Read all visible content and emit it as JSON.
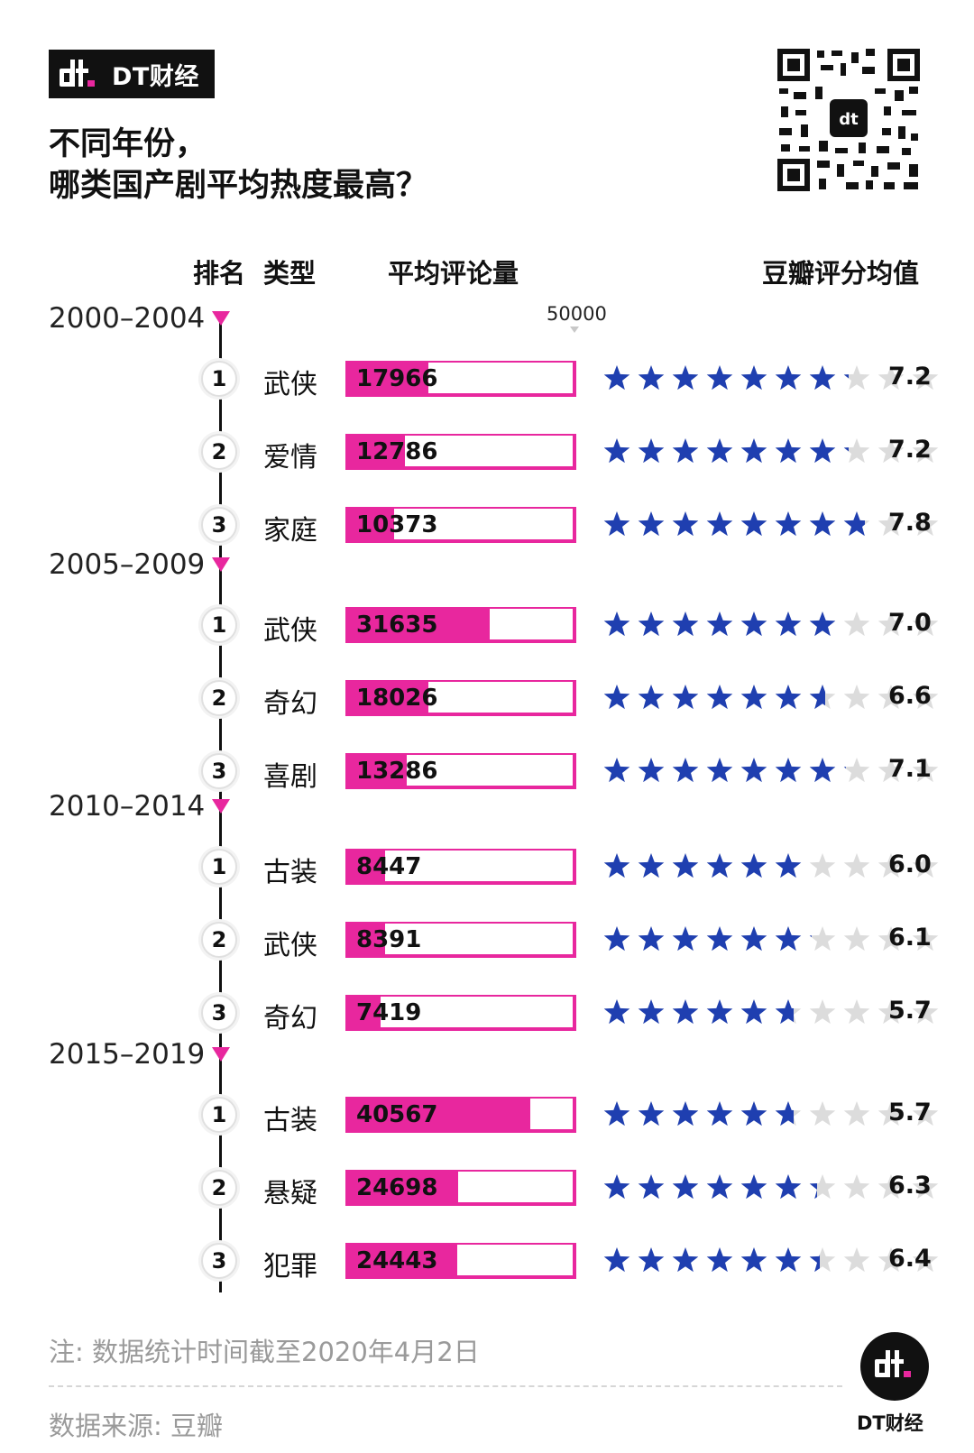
{
  "header": {
    "brand": "DT财经",
    "title_line1": "不同年份，",
    "title_line2": "哪类国产剧平均热度最高？"
  },
  "columns": {
    "rank": "排名",
    "genre": "类型",
    "comments": "平均评论量",
    "rating": "豆瓣评分均值"
  },
  "colors": {
    "accent": "#e8279e",
    "star": "#1f3fb0",
    "star_empty": "#dcdcdc"
  },
  "chart_data": {
    "type": "bar",
    "bar_max": 50000,
    "bar_max_label": "50000",
    "rating_max": 10,
    "star_count": 10,
    "groups": [
      {
        "period": "2000–2004",
        "rows": [
          {
            "rank": "1",
            "genre": "武侠",
            "comments": 17966,
            "comments_label": "17966",
            "rating": 7.2,
            "rating_label": "7.2"
          },
          {
            "rank": "2",
            "genre": "爱情",
            "comments": 12786,
            "comments_label": "12786",
            "rating": 7.2,
            "rating_label": "7.2"
          },
          {
            "rank": "3",
            "genre": "家庭",
            "comments": 10373,
            "comments_label": "10373",
            "rating": 7.8,
            "rating_label": "7.8"
          }
        ]
      },
      {
        "period": "2005–2009",
        "rows": [
          {
            "rank": "1",
            "genre": "武侠",
            "comments": 31635,
            "comments_label": "31635",
            "rating": 7.0,
            "rating_label": "7.0"
          },
          {
            "rank": "2",
            "genre": "奇幻",
            "comments": 18026,
            "comments_label": "18026",
            "rating": 6.6,
            "rating_label": "6.6"
          },
          {
            "rank": "3",
            "genre": "喜剧",
            "comments": 13286,
            "comments_label": "13286",
            "rating": 7.1,
            "rating_label": "7.1"
          }
        ]
      },
      {
        "period": "2010–2014",
        "rows": [
          {
            "rank": "1",
            "genre": "古装",
            "comments": 8447,
            "comments_label": "8447",
            "rating": 6.0,
            "rating_label": "6.0"
          },
          {
            "rank": "2",
            "genre": "武侠",
            "comments": 8391,
            "comments_label": "8391",
            "rating": 6.1,
            "rating_label": "6.1"
          },
          {
            "rank": "3",
            "genre": "奇幻",
            "comments": 7419,
            "comments_label": "7419",
            "rating": 5.7,
            "rating_label": "5.7"
          }
        ]
      },
      {
        "period": "2015–2019",
        "rows": [
          {
            "rank": "1",
            "genre": "古装",
            "comments": 40567,
            "comments_label": "40567",
            "rating": 5.7,
            "rating_label": "5.7"
          },
          {
            "rank": "2",
            "genre": "悬疑",
            "comments": 24698,
            "comments_label": "24698",
            "rating": 6.3,
            "rating_label": "6.3"
          },
          {
            "rank": "3",
            "genre": "犯罪",
            "comments": 24443,
            "comments_label": "24443",
            "rating": 6.4,
            "rating_label": "6.4"
          }
        ]
      }
    ]
  },
  "footer": {
    "note": "注: 数据统计时间截至2020年4月2日",
    "source": "数据来源: 豆瓣",
    "brand": "DT财经"
  }
}
